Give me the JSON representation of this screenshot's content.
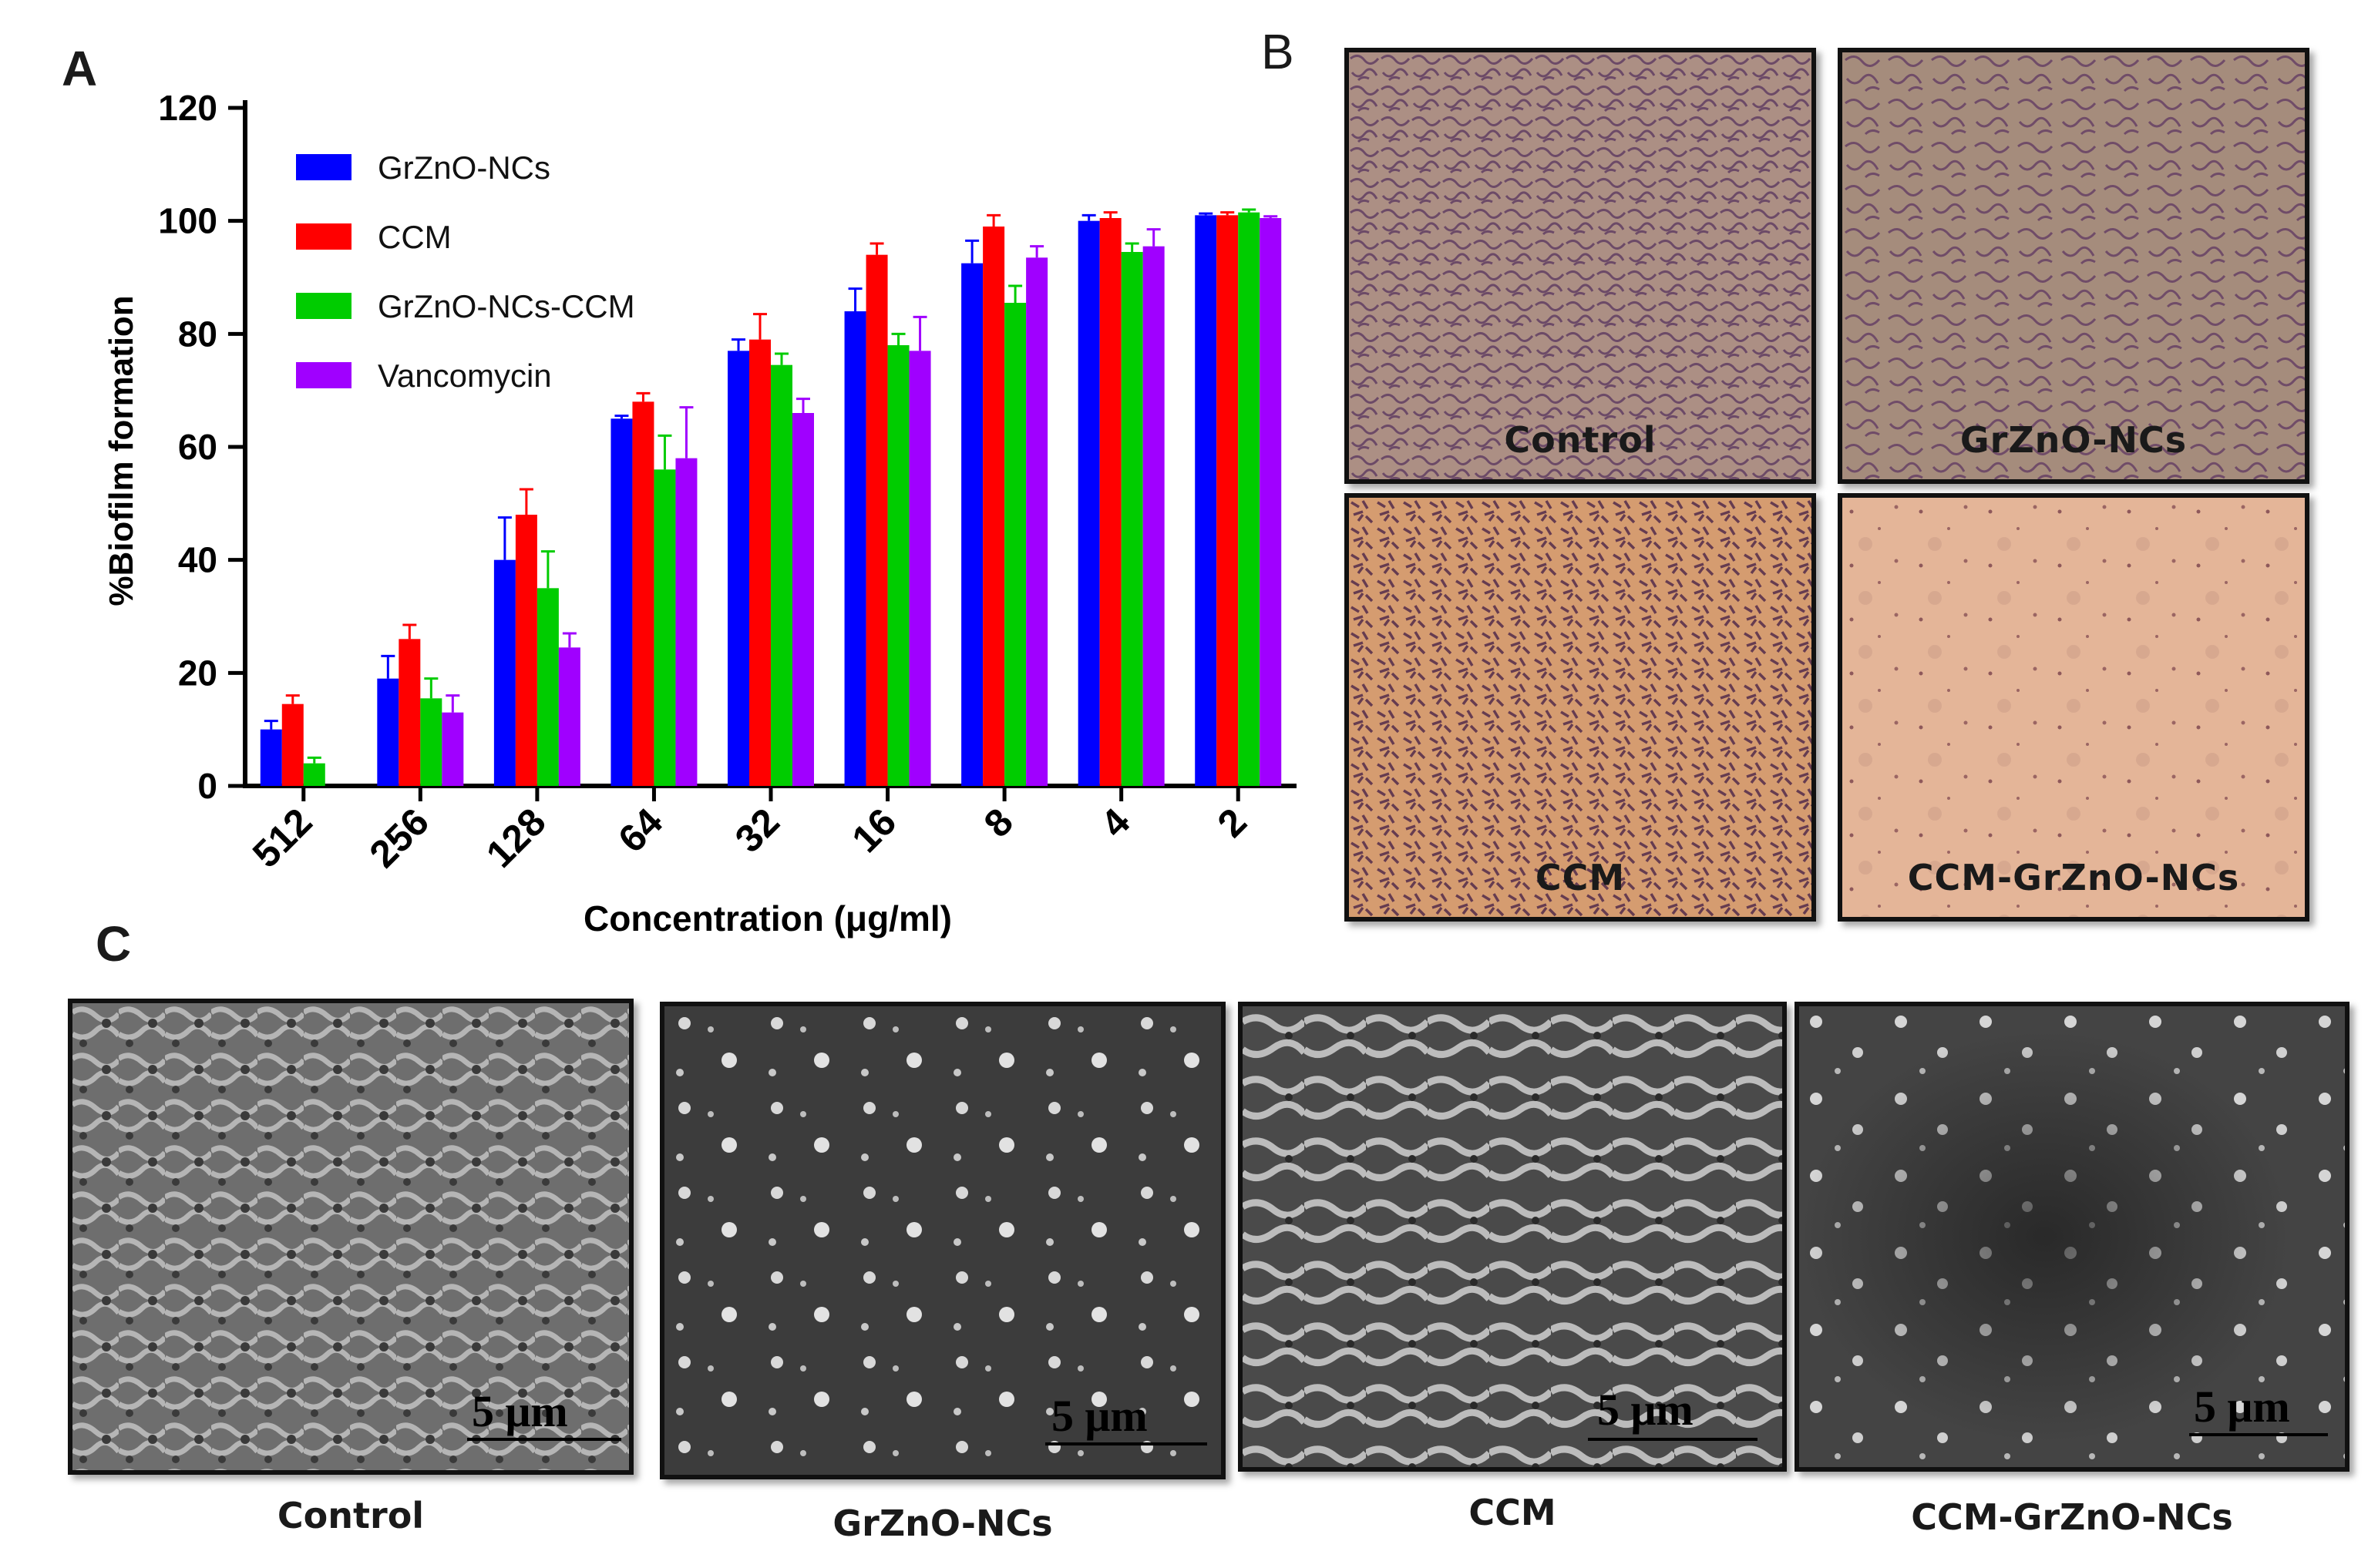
{
  "panels": {
    "a": "A",
    "b": "B",
    "c": "C"
  },
  "chart_data": {
    "type": "bar",
    "title": "",
    "xlabel": "Concentration (μg/ml)",
    "ylabel": "%Biofilm formation",
    "categories": [
      "512",
      "256",
      "128",
      "64",
      "32",
      "16",
      "8",
      "4",
      "2"
    ],
    "ylim": [
      0,
      120
    ],
    "yticks": [
      0,
      20,
      40,
      60,
      80,
      100,
      120
    ],
    "legend_position": "top-left",
    "series": [
      {
        "name": "GrZnO-NCs",
        "color": "#0000ff",
        "values": [
          10,
          19,
          40,
          65,
          77,
          84,
          92.5,
          100,
          101
        ],
        "errors": [
          1.5,
          4,
          7.5,
          0.5,
          2,
          4,
          4,
          1,
          0.3
        ]
      },
      {
        "name": "CCM",
        "color": "#ff0000",
        "values": [
          14.5,
          26,
          48,
          68,
          79,
          94,
          99,
          100.5,
          101
        ],
        "errors": [
          1.5,
          2.5,
          4.5,
          1.5,
          4.5,
          2,
          2,
          1,
          0.5
        ]
      },
      {
        "name": "GrZnO-NCs-CCM",
        "color": "#00cc00",
        "values": [
          4,
          15.5,
          35,
          56,
          74.5,
          78,
          85.5,
          94.5,
          101.5
        ],
        "errors": [
          1,
          3.5,
          6.5,
          6,
          2,
          2,
          3,
          1.5,
          0.5
        ]
      },
      {
        "name": "Vancomycin",
        "color": "#a000ff",
        "values": [
          0,
          13,
          24.5,
          58,
          66,
          77,
          93.5,
          95.5,
          100.5
        ],
        "errors": [
          0,
          3,
          2.5,
          9,
          2.5,
          6,
          2,
          3,
          0.3
        ]
      }
    ]
  },
  "micrographs": {
    "control": {
      "label": "Control",
      "bg": "#b89b86"
    },
    "grzno": {
      "label": "GrZnO-NCs",
      "bg": "#a58c7c"
    },
    "ccm": {
      "label": "CCM",
      "bg": "#d59c70"
    },
    "ccm_grzno": {
      "label": "CCM-GrZnO-NCs",
      "bg": "#e4b598"
    }
  },
  "sem": {
    "scale_label": "5 μm",
    "control": {
      "caption": "Control"
    },
    "grzno": {
      "caption": "GrZnO-NCs"
    },
    "ccm": {
      "caption": "CCM"
    },
    "ccm_grzno": {
      "caption": "CCM-GrZnO-NCs"
    }
  }
}
